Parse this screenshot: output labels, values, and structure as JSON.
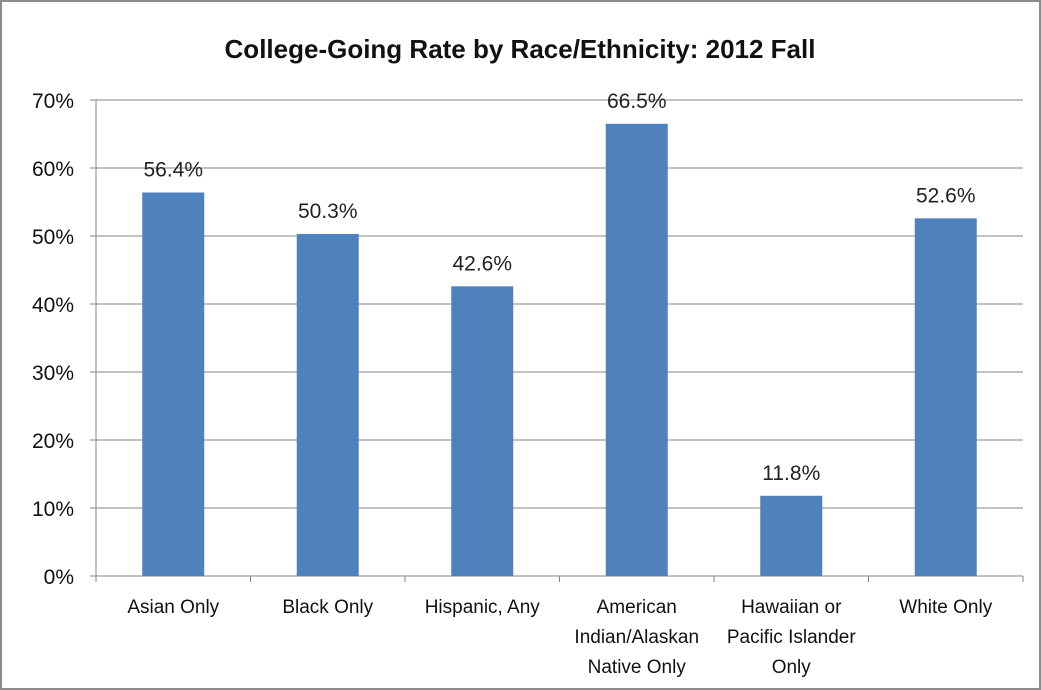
{
  "chart_data": {
    "type": "bar",
    "title": "College-Going Rate by Race/Ethnicity: 2012 Fall",
    "xlabel": "",
    "ylabel": "",
    "categories": [
      [
        "Asian Only"
      ],
      [
        "Black Only"
      ],
      [
        "Hispanic, Any"
      ],
      [
        "American",
        "Indian/Alaskan",
        "Native Only"
      ],
      [
        "Hawaiian or",
        "Pacific Islander",
        "Only"
      ],
      [
        "White Only"
      ]
    ],
    "values": [
      56.4,
      50.3,
      42.6,
      66.5,
      11.8,
      52.6
    ],
    "value_labels": [
      "56.4%",
      "50.3%",
      "42.6%",
      "66.5%",
      "11.8%",
      "52.6%"
    ],
    "ylim": [
      0,
      70
    ],
    "y_ticks": [
      0,
      10,
      20,
      30,
      40,
      50,
      60,
      70
    ],
    "y_tick_labels": [
      "0%",
      "10%",
      "20%",
      "30%",
      "40%",
      "50%",
      "60%",
      "70%"
    ],
    "grid": true,
    "legend": "none",
    "colors": {
      "bar": "#4f81bd",
      "grid": "#868686",
      "axis": "#868686",
      "border": "#8c8c8c"
    }
  }
}
